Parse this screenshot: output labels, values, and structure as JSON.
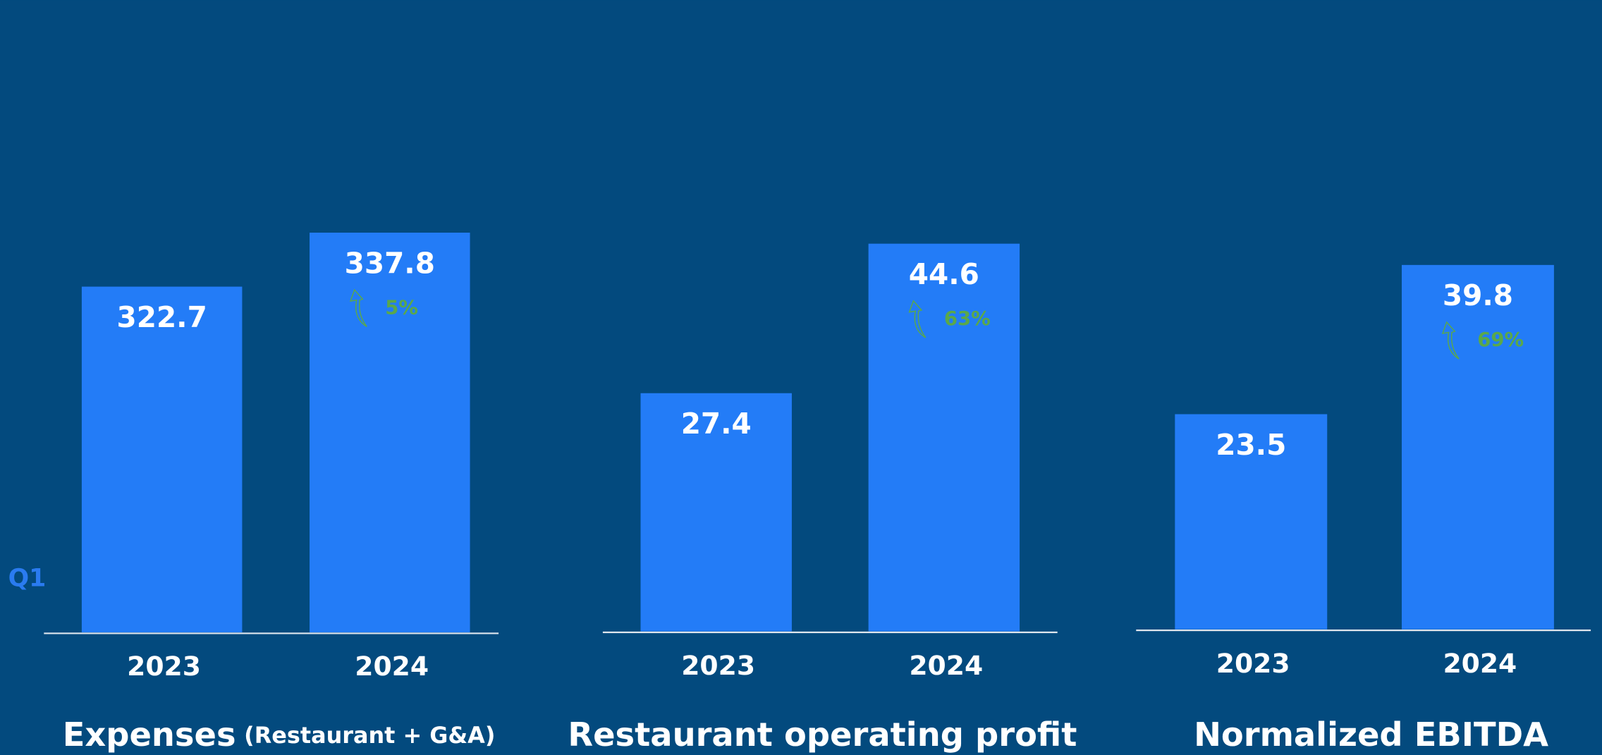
{
  "period": "Q1",
  "chart_data": [
    {
      "type": "bar",
      "title": "Expenses",
      "subtitle": "(Restaurant + G&A)",
      "categories": [
        "2023",
        "2024"
      ],
      "values": [
        322.7,
        337.8
      ],
      "change_label": "5%",
      "color": "#237cf7",
      "ylim": [
        226,
        360
      ]
    },
    {
      "type": "bar",
      "title": "Restaurant operating profit",
      "categories": [
        "2023",
        "2024"
      ],
      "values": [
        27.4,
        44.6
      ],
      "change_label": "63%",
      "color": "#237cf7",
      "ylim": [
        0,
        55
      ]
    },
    {
      "type": "bar",
      "title": "Normalized EBITDA",
      "categories": [
        "2023",
        "2024"
      ],
      "values": [
        23.5,
        39.8
      ],
      "change_label": "69%",
      "color": "#237cf7",
      "ylim": [
        0,
        52
      ]
    }
  ]
}
